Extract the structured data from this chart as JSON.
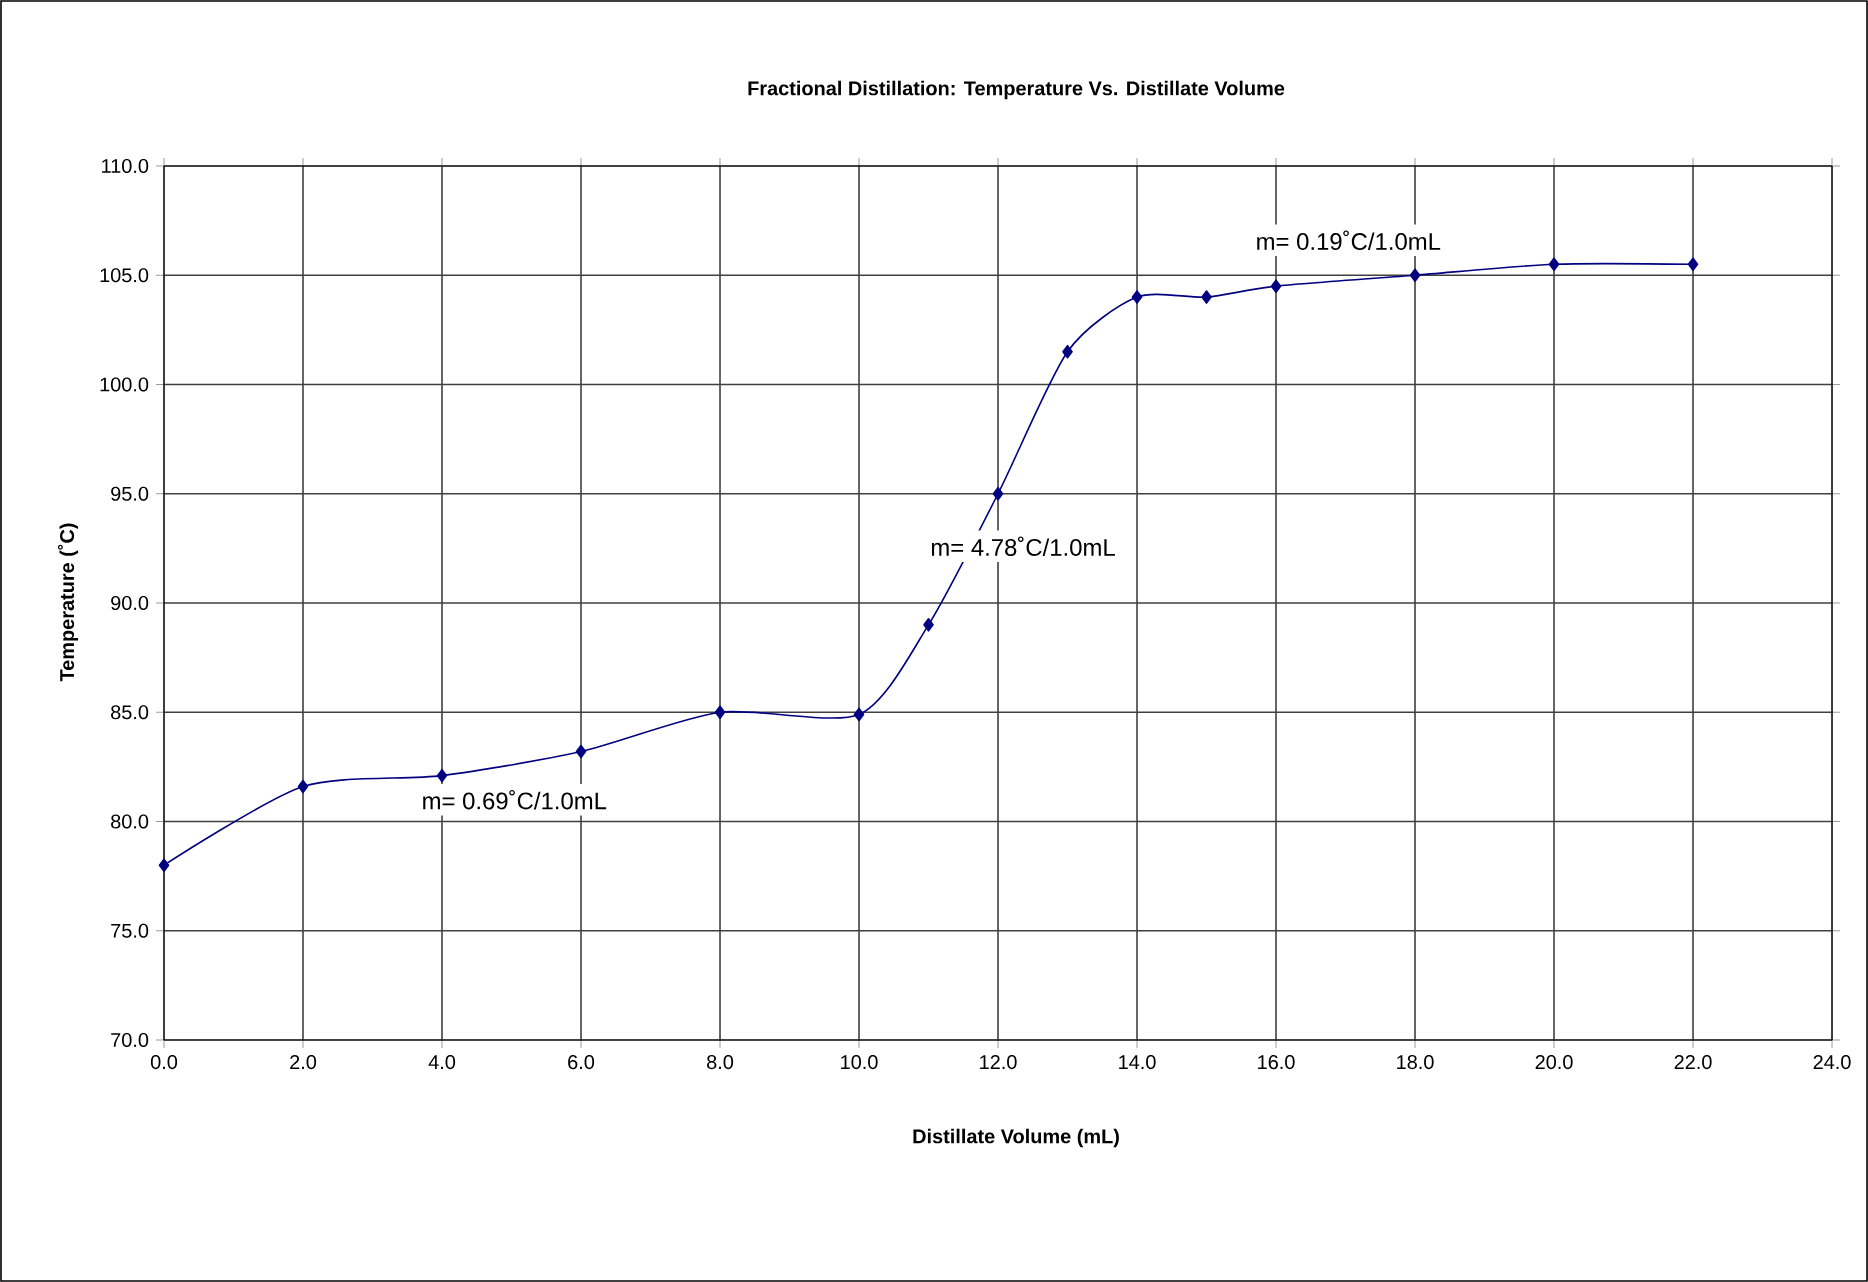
{
  "chart_data": {
    "type": "line",
    "title": "Fractional Distillation: Temperature Vs. Distillate Volume",
    "xlabel": "Distillate Volume (mL)",
    "ylabel": "Temperature (˚C)",
    "x": [
      0,
      2,
      4,
      6,
      8,
      10,
      11,
      12,
      13,
      14,
      15,
      16,
      18,
      20,
      22
    ],
    "series": [
      {
        "color": "#000080",
        "values": [
          78.0,
          81.6,
          82.1,
          83.2,
          85.0,
          84.9,
          89.0,
          95.0,
          101.5,
          104.0,
          104.0,
          104.5,
          105.0,
          105.5,
          105.5
        ]
      }
    ],
    "xlim": [
      0,
      24
    ],
    "ylim": [
      70,
      110
    ],
    "xticks": [
      {
        "value": 0,
        "label": "0.0"
      },
      {
        "value": 2,
        "label": "2.0"
      },
      {
        "value": 4,
        "label": "4.0"
      },
      {
        "value": 6,
        "label": "6.0"
      },
      {
        "value": 8,
        "label": "8.0"
      },
      {
        "value": 10,
        "label": "10.0"
      },
      {
        "value": 12,
        "label": "12.0"
      },
      {
        "value": 14,
        "label": "14.0"
      },
      {
        "value": 16,
        "label": "16.0"
      },
      {
        "value": 18,
        "label": "18.0"
      },
      {
        "value": 20,
        "label": "20.0"
      },
      {
        "value": 22,
        "label": "22.0"
      },
      {
        "value": 24,
        "label": "24.0"
      }
    ],
    "yticks": [
      {
        "value": 70,
        "label": "70.0"
      },
      {
        "value": 75,
        "label": "75.0"
      },
      {
        "value": 80,
        "label": "80.0"
      },
      {
        "value": 85,
        "label": "85.0"
      },
      {
        "value": 90,
        "label": "90.0"
      },
      {
        "value": 95,
        "label": "95.0"
      },
      {
        "value": 100,
        "label": "100.0"
      },
      {
        "value": 105,
        "label": "105.0"
      },
      {
        "value": 110,
        "label": "110.0"
      }
    ],
    "annotations": [
      "m= 0.69˚C/1.0mL",
      "m= 4.78˚C/1.0mL",
      "m= 0.19˚C/1.0mL"
    ],
    "grid": true,
    "marker": "diamond",
    "line_style": "solid"
  }
}
